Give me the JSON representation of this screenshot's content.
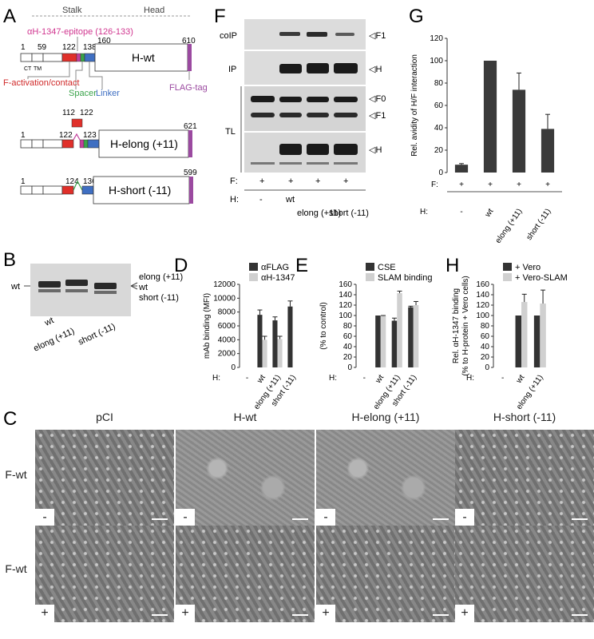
{
  "panels": {
    "A": "A",
    "B": "B",
    "C": "C",
    "D": "D",
    "E": "E",
    "F": "F",
    "G": "G",
    "H": "H"
  },
  "panel_a": {
    "stalk": "Stalk",
    "head": "Head",
    "epitope": "αH-1347-epitope (126-133)",
    "nums_wt": [
      "1",
      "59",
      "122",
      "138",
      "160",
      "610"
    ],
    "nums_elong": [
      "112",
      "122",
      "122",
      "123",
      "621"
    ],
    "nums_short": [
      "1",
      "124",
      "136",
      "599"
    ],
    "ct": "CT",
    "tm": "TM",
    "h_wt": "H-wt",
    "h_elong": "H-elong (+11)",
    "h_short": "H-short (-11)",
    "f_act": "F-activation/contact",
    "spacer": "Spacer",
    "linker": "Linker",
    "flag": "FLAG-tag"
  },
  "panel_b": {
    "wt_left": "wt",
    "right": [
      "elong (+11)",
      "wt",
      "short (-11)"
    ],
    "lanes": [
      "wt",
      "elong (+11)",
      "short (-11)"
    ]
  },
  "panel_f": {
    "rows": [
      "coIP",
      "IP",
      "TL"
    ],
    "bands": [
      "F1",
      "H",
      "F0",
      "F1",
      "H"
    ],
    "f_label": "F:",
    "h_label": "H:",
    "f_vals": [
      "+",
      "+",
      "+",
      "+"
    ],
    "h_vals": [
      "-",
      "wt",
      "elong (+11)",
      "short (-11)"
    ]
  },
  "chart_data": [
    {
      "id": "G",
      "type": "bar",
      "ylabel": "Rel. avidity of H/F  interaction",
      "ylim": [
        0,
        120
      ],
      "ticks": [
        0,
        20,
        40,
        60,
        80,
        100,
        120
      ],
      "categories": [
        "-",
        "wt",
        "elong (+11)",
        "short (-11)"
      ],
      "values": [
        7,
        100,
        74,
        39
      ],
      "errors": [
        1,
        0,
        15,
        13
      ],
      "f_vals": [
        "+",
        "+",
        "+",
        "+"
      ]
    },
    {
      "id": "D",
      "type": "bar",
      "ylabel": "mAb binding (MFI)",
      "ylim": [
        0,
        12000
      ],
      "ticks": [
        0,
        2000,
        4000,
        6000,
        8000,
        10000,
        12000
      ],
      "categories": [
        "-",
        "wt",
        "elong (+11)",
        "short (-11)"
      ],
      "series": [
        {
          "name": "αFLAG",
          "color": "#333333",
          "values": [
            0,
            7600,
            6800,
            8800
          ],
          "errors": [
            0,
            700,
            500,
            800
          ]
        },
        {
          "name": "αH-1347",
          "color": "#d0d0d0",
          "values": [
            0,
            4000,
            4100,
            0
          ],
          "errors": [
            0,
            500,
            400,
            0
          ]
        }
      ]
    },
    {
      "id": "E",
      "type": "bar",
      "ylabel": "(% to control)",
      "ylim": [
        0,
        160
      ],
      "ticks": [
        0,
        20,
        40,
        60,
        80,
        100,
        120,
        140,
        160
      ],
      "categories": [
        "-",
        "wt",
        "elong (+11)",
        "short (-11)"
      ],
      "series": [
        {
          "name": "CSE",
          "color": "#333333",
          "values": [
            0,
            100,
            90,
            116
          ],
          "errors": [
            0,
            0,
            5,
            2
          ]
        },
        {
          "name": "SLAM binding",
          "color": "#d0d0d0",
          "values": [
            0,
            99,
            143,
            120
          ],
          "errors": [
            0,
            1,
            4,
            7
          ]
        }
      ]
    },
    {
      "id": "H",
      "type": "bar",
      "ylabel": "Rel. αH-1347 binding",
      "ylabel2": "(% to H-protein + Vero cells)",
      "ylim": [
        0,
        160
      ],
      "ticks": [
        0,
        20,
        40,
        60,
        80,
        100,
        120,
        140,
        160
      ],
      "categories": [
        "-",
        "wt",
        "elong (+11)"
      ],
      "series": [
        {
          "name": "+ Vero",
          "color": "#333333",
          "values": [
            0,
            100,
            100
          ],
          "errors": [
            0,
            0,
            0
          ]
        },
        {
          "name": "+ Vero-SLAM",
          "color": "#d0d0d0",
          "values": [
            0,
            126,
            123
          ],
          "errors": [
            0,
            15,
            26
          ]
        }
      ]
    }
  ],
  "axis_h_label": "H:",
  "panel_c": {
    "columns": [
      "pCI",
      "H-wt",
      "H-elong (+11)",
      "H-short (-11)"
    ],
    "rows": [
      "F-wt",
      "F-wt"
    ],
    "signs": [
      "-",
      "+"
    ]
  }
}
